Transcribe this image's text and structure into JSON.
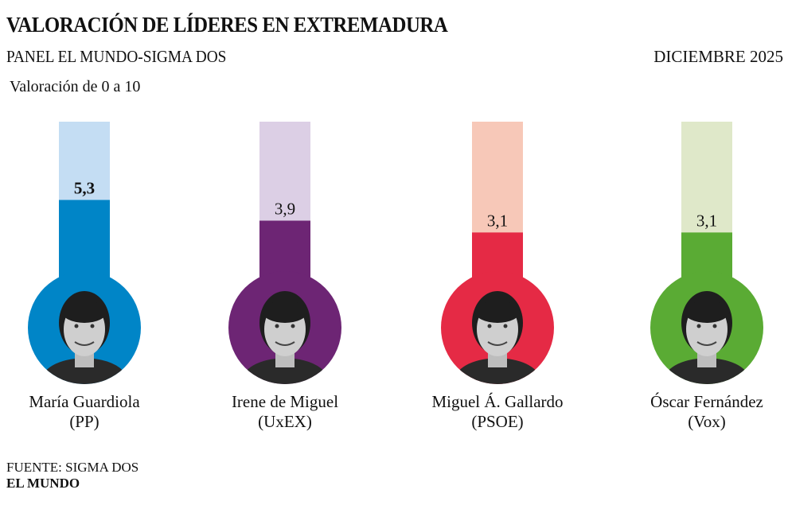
{
  "header": {
    "title": "VALORACIÓN DE LÍDERES EN EXTREMADURA",
    "subtitle": "PANEL EL MUNDO-SIGMA DOS",
    "date": "DICIEMBRE 2025"
  },
  "chart_data": {
    "type": "bar",
    "title": "VALORACIÓN DE LÍDERES EN EXTREMADURA",
    "ylabel": "Valoración de 0 a 10",
    "ylim": [
      0,
      10
    ],
    "grid": false,
    "categories": [
      "María Guardiola",
      "Irene de Miguel",
      "Miguel Á. Gallardo",
      "Óscar Fernández"
    ],
    "parties": [
      "(PP)",
      "(UxEX)",
      "(PSOE)",
      "(Vox)"
    ],
    "values": [
      5.3,
      3.9,
      3.1,
      3.1
    ],
    "labels": [
      "5,3",
      "3,9",
      "3,1",
      "3,1"
    ],
    "colors": [
      "#0085c7",
      "#6d2574",
      "#e52a45",
      "#5aab34"
    ],
    "light_colors": [
      "#c4ddf3",
      "#dccfe5",
      "#f7c8b8",
      "#dfe8c9"
    ]
  },
  "footer": {
    "source": "FUENTE: SIGMA DOS",
    "brand": "EL MUNDO"
  }
}
